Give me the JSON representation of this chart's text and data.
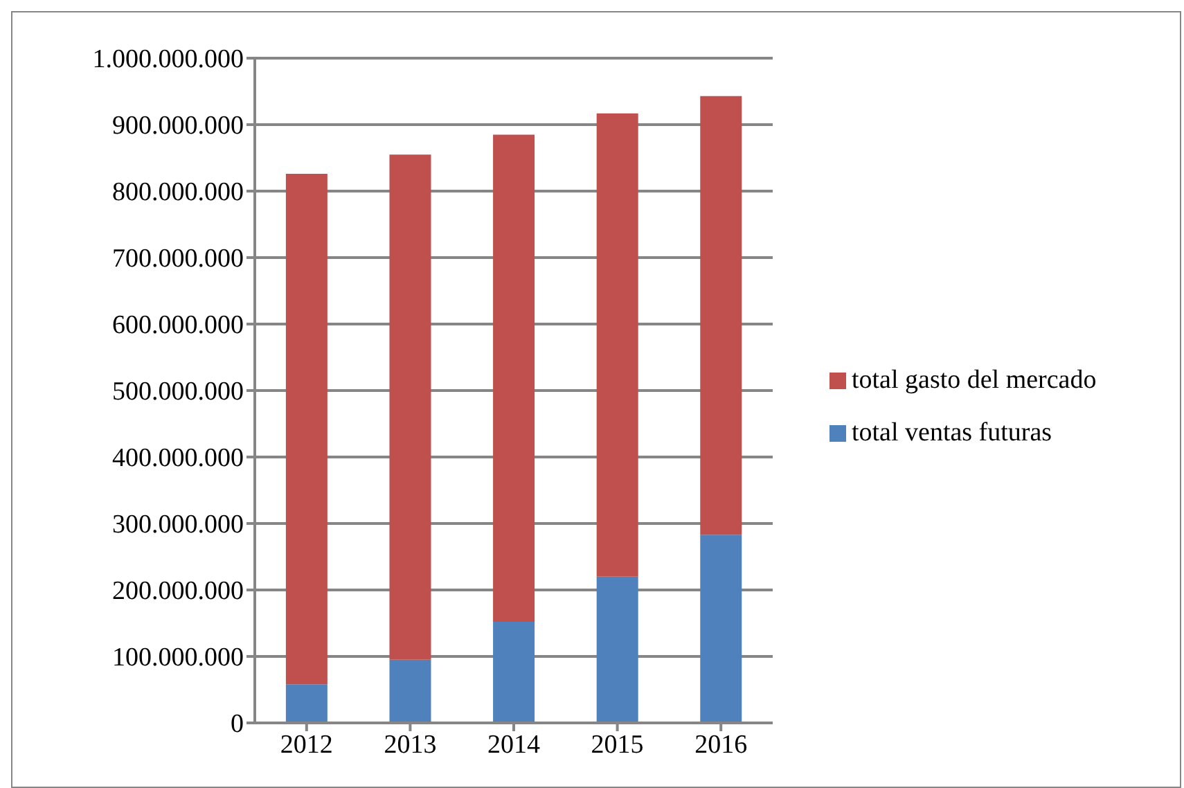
{
  "chart_data": {
    "type": "bar",
    "stacked": true,
    "categories": [
      "2012",
      "2013",
      "2014",
      "2015",
      "2016"
    ],
    "series": [
      {
        "name": "total ventas futuras",
        "color": "#4f81bd",
        "values": [
          58000000,
          95000000,
          152000000,
          220000000,
          283000000
        ]
      },
      {
        "name": "total gasto del mercado",
        "color": "#c0504d",
        "values": [
          768000000,
          760000000,
          733000000,
          697000000,
          660000000
        ]
      }
    ],
    "ylim": [
      0,
      1000000000
    ],
    "yticks": [
      {
        "value": 0,
        "label": "0"
      },
      {
        "value": 100000000,
        "label": "100.000.000"
      },
      {
        "value": 200000000,
        "label": "200.000.000"
      },
      {
        "value": 300000000,
        "label": "300.000.000"
      },
      {
        "value": 400000000,
        "label": "400.000.000"
      },
      {
        "value": 500000000,
        "label": "500.000.000"
      },
      {
        "value": 600000000,
        "label": "600.000.000"
      },
      {
        "value": 700000000,
        "label": "700.000.000"
      },
      {
        "value": 800000000,
        "label": "800.000.000"
      },
      {
        "value": 900000000,
        "label": "900.000.000"
      },
      {
        "value": 1000000000,
        "label": "1.000.000.000"
      }
    ],
    "grid": "y",
    "legend": "right"
  }
}
